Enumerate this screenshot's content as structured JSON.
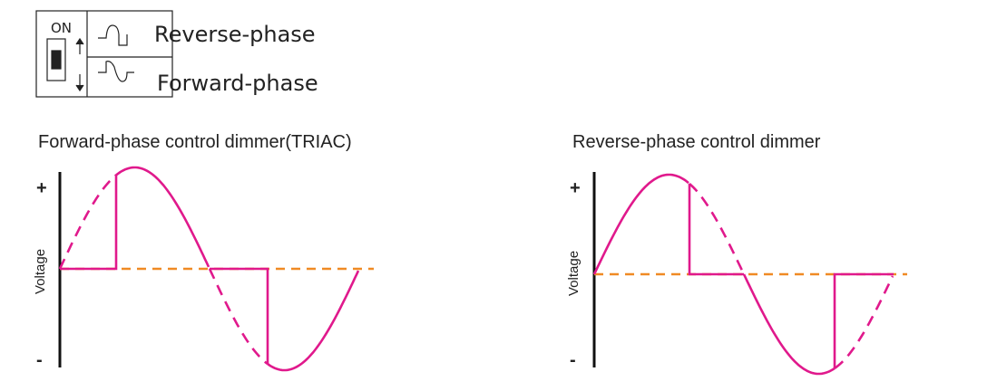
{
  "header": {
    "switch_label": "ON",
    "options": [
      "Reverse-phase",
      "Forward-phase"
    ]
  },
  "diagrams": [
    {
      "title": "Forward-phase control dimmer(TRIAC)",
      "axis_label": "Voltage",
      "plus": "+",
      "minus": "-"
    },
    {
      "title": "Reverse-phase control dimmer",
      "axis_label": "Voltage",
      "plus": "+",
      "minus": "-"
    }
  ]
}
